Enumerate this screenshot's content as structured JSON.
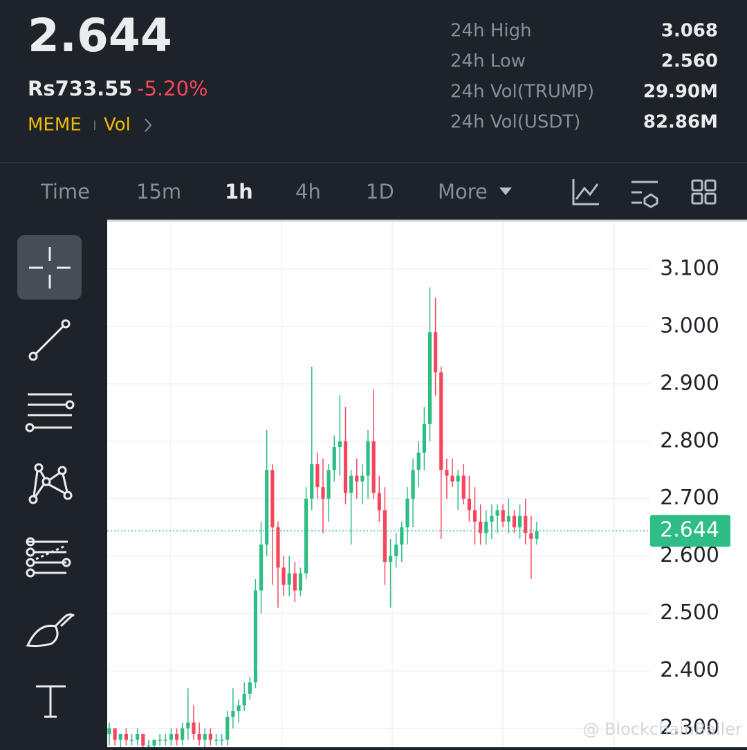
{
  "header": {
    "price": "2.644",
    "fiat_price": "Rs733.55",
    "change": "-5.20%",
    "tags": [
      "MEME",
      "Vol"
    ],
    "stats": [
      {
        "label": "24h High",
        "value": "3.068"
      },
      {
        "label": "24h Low",
        "value": "2.560"
      },
      {
        "label": "24h Vol(TRUMP)",
        "value": "29.90M"
      },
      {
        "label": "24h Vol(USDT)",
        "value": "82.86M"
      }
    ]
  },
  "tabs": [
    "Time",
    "15m",
    "1h",
    "4h",
    "1D",
    "More"
  ],
  "watermark": "@ BlockchainBaller",
  "chart_data": {
    "type": "candlestick",
    "up_color": "#2ebd85",
    "down_color": "#f6465d",
    "ylim": [
      2.267,
      3.183
    ],
    "yticks": [
      {
        "value": 2.3,
        "label": "2.300"
      },
      {
        "value": 2.4,
        "label": "2.400"
      },
      {
        "value": 2.5,
        "label": "2.500"
      },
      {
        "value": 2.6,
        "label": "2.600"
      },
      {
        "value": 2.7,
        "label": "2.700"
      },
      {
        "value": 2.8,
        "label": "2.800"
      },
      {
        "value": 2.9,
        "label": "2.900"
      },
      {
        "value": 3.0,
        "label": "3.000"
      },
      {
        "value": 3.1,
        "label": "3.100"
      }
    ],
    "grid": true,
    "current_price": 2.644,
    "open": [
      2.29,
      2.3,
      2.28,
      2.29,
      2.28,
      2.28,
      2.29,
      2.27,
      2.27,
      2.28,
      2.28,
      2.28,
      2.29,
      2.28,
      2.3,
      2.31,
      2.29,
      2.28,
      2.29,
      2.28,
      2.28,
      2.28,
      2.32,
      2.33,
      2.34,
      2.36,
      2.38,
      2.54,
      2.62,
      2.75,
      2.65,
      2.58,
      2.55,
      2.57,
      2.54,
      2.57,
      2.7,
      2.76,
      2.72,
      2.7,
      2.75,
      2.79,
      2.8,
      2.71,
      2.74,
      2.73,
      2.74,
      2.8,
      2.71,
      2.68,
      2.59,
      2.6,
      2.62,
      2.65,
      2.7,
      2.75,
      2.78,
      2.83,
      2.99,
      2.92,
      2.75,
      2.74,
      2.73,
      2.74,
      2.7,
      2.68,
      2.66,
      2.64,
      2.66,
      2.67,
      2.68,
      2.66,
      2.67,
      2.65,
      2.67,
      2.64,
      2.63
    ],
    "high": [
      2.31,
      2.3,
      2.29,
      2.3,
      2.29,
      2.3,
      2.29,
      2.28,
      2.28,
      2.29,
      2.29,
      2.3,
      2.3,
      2.31,
      2.37,
      2.34,
      2.31,
      2.3,
      2.3,
      2.29,
      2.29,
      2.33,
      2.37,
      2.35,
      2.38,
      2.39,
      2.56,
      2.66,
      2.82,
      2.76,
      2.66,
      2.6,
      2.6,
      2.59,
      2.58,
      2.72,
      2.93,
      2.78,
      2.77,
      2.76,
      2.81,
      2.88,
      2.86,
      2.75,
      2.77,
      2.76,
      2.82,
      2.89,
      2.74,
      2.72,
      2.63,
      2.64,
      2.66,
      2.72,
      2.77,
      2.8,
      2.86,
      3.068,
      3.05,
      2.93,
      2.77,
      2.77,
      2.75,
      2.76,
      2.74,
      2.72,
      2.69,
      2.68,
      2.69,
      2.69,
      2.69,
      2.7,
      2.68,
      2.69,
      2.7,
      2.67,
      2.66
    ],
    "low": [
      2.27,
      2.27,
      2.26,
      2.27,
      2.27,
      2.27,
      2.26,
      2.26,
      2.26,
      2.27,
      2.27,
      2.27,
      2.27,
      2.27,
      2.28,
      2.28,
      2.27,
      2.26,
      2.27,
      2.27,
      2.27,
      2.27,
      2.3,
      2.31,
      2.33,
      2.35,
      2.37,
      2.5,
      2.6,
      2.55,
      2.51,
      2.53,
      2.53,
      2.52,
      2.53,
      2.56,
      2.68,
      2.7,
      2.64,
      2.66,
      2.73,
      2.74,
      2.69,
      2.62,
      2.7,
      2.69,
      2.7,
      2.7,
      2.66,
      2.55,
      2.51,
      2.58,
      2.59,
      2.62,
      2.65,
      2.72,
      2.75,
      2.8,
      2.88,
      2.63,
      2.7,
      2.72,
      2.68,
      2.69,
      2.66,
      2.62,
      2.62,
      2.62,
      2.63,
      2.64,
      2.65,
      2.64,
      2.64,
      2.63,
      2.62,
      2.56,
      2.62
    ],
    "close": [
      2.3,
      2.28,
      2.29,
      2.28,
      2.28,
      2.29,
      2.27,
      2.27,
      2.28,
      2.28,
      2.28,
      2.29,
      2.28,
      2.3,
      2.31,
      2.29,
      2.28,
      2.29,
      2.28,
      2.28,
      2.28,
      2.32,
      2.33,
      2.34,
      2.36,
      2.38,
      2.54,
      2.62,
      2.75,
      2.65,
      2.58,
      2.55,
      2.57,
      2.54,
      2.57,
      2.7,
      2.76,
      2.72,
      2.7,
      2.75,
      2.79,
      2.8,
      2.71,
      2.74,
      2.73,
      2.74,
      2.8,
      2.71,
      2.68,
      2.59,
      2.6,
      2.62,
      2.65,
      2.7,
      2.75,
      2.78,
      2.83,
      2.99,
      2.92,
      2.75,
      2.74,
      2.73,
      2.74,
      2.7,
      2.68,
      2.66,
      2.64,
      2.66,
      2.67,
      2.68,
      2.66,
      2.67,
      2.65,
      2.67,
      2.64,
      2.63,
      2.644
    ]
  }
}
